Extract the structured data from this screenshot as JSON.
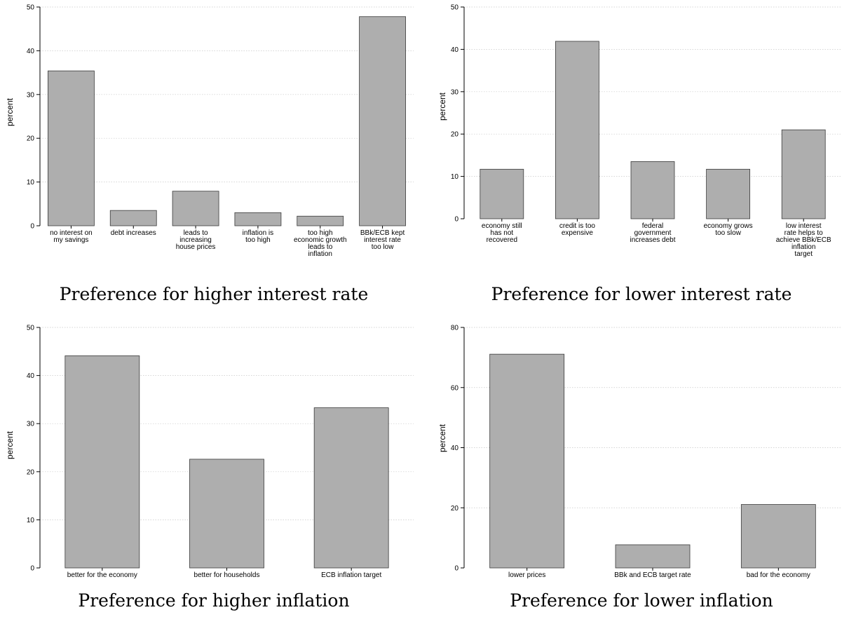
{
  "chart_data": [
    {
      "type": "bar",
      "caption": "Preference for higher interest rate",
      "ylabel": "percent",
      "ylim": [
        0,
        50
      ],
      "yticks": [
        0,
        10,
        20,
        30,
        40,
        50
      ],
      "grid": true,
      "categories": [
        [
          "no interest on",
          "my savings"
        ],
        [
          "debt increases"
        ],
        [
          "leads to",
          "increasing",
          "house prices"
        ],
        [
          "inflation is",
          "too high"
        ],
        [
          "too high",
          "economic growth",
          "leads to",
          "inflation"
        ],
        [
          "BBk/ECB kept",
          "interest rate",
          "too low"
        ]
      ],
      "values": [
        35.4,
        3.5,
        7.9,
        3.0,
        2.2,
        47.8
      ]
    },
    {
      "type": "bar",
      "caption": "Preference for lower interest rate",
      "ylabel": "percent",
      "ylim": [
        0,
        50
      ],
      "yticks": [
        0,
        10,
        20,
        30,
        40,
        50
      ],
      "grid": true,
      "categories": [
        [
          "economy still",
          "has not",
          "recovered"
        ],
        [
          "credit is too",
          "expensive"
        ],
        [
          "federal",
          "government",
          "increases debt"
        ],
        [
          "economy grows",
          "too slow"
        ],
        [
          "low interest",
          "rate helps to",
          "achieve BBk/ECB",
          "inflation",
          "target"
        ]
      ],
      "values": [
        11.7,
        41.9,
        13.5,
        11.7,
        21.0
      ]
    },
    {
      "type": "bar",
      "caption": "Preference for higher inflation",
      "ylabel": "percent",
      "ylim": [
        0,
        50
      ],
      "yticks": [
        0,
        10,
        20,
        30,
        40,
        50
      ],
      "grid": true,
      "categories": [
        [
          "better for the economy"
        ],
        [
          "better for households"
        ],
        [
          "ECB inflation target"
        ]
      ],
      "values": [
        44.1,
        22.6,
        33.3
      ]
    },
    {
      "type": "bar",
      "caption": "Preference for lower inflation",
      "ylabel": "percent",
      "ylim": [
        0,
        80
      ],
      "yticks": [
        0,
        20,
        40,
        60,
        80
      ],
      "grid": true,
      "categories": [
        [
          "lower prices"
        ],
        [
          "BBk and ECB target rate"
        ],
        [
          "bad for the economy"
        ]
      ],
      "values": [
        71.1,
        7.7,
        21.1
      ]
    }
  ]
}
